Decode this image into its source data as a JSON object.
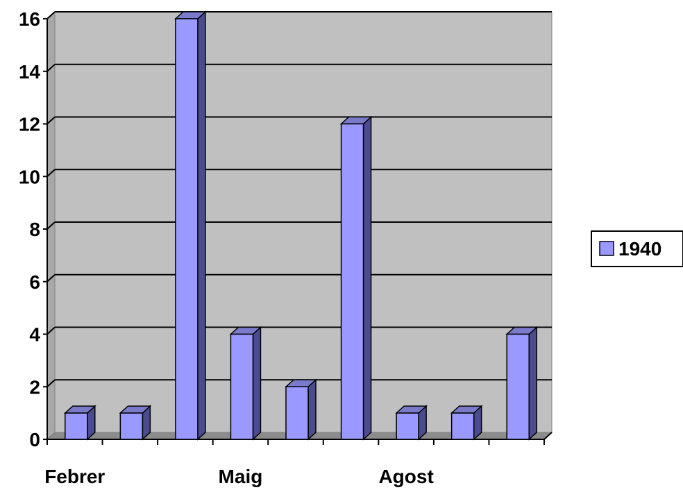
{
  "chart_data": {
    "type": "bar",
    "categories": [
      "Febrer",
      "",
      "",
      "Maig",
      "",
      "",
      "Agost",
      "",
      ""
    ],
    "visible_category_labels": [
      "Febrer",
      "Maig",
      "Agost"
    ],
    "series": [
      {
        "name": "1940",
        "values": [
          1,
          1,
          16,
          4,
          2,
          12,
          1,
          1,
          4
        ],
        "color": "#9999ff"
      }
    ],
    "ylim": [
      0,
      16
    ],
    "yticks": [
      0,
      2,
      4,
      6,
      8,
      10,
      12,
      14,
      16
    ],
    "grid": true,
    "legend_position": "right",
    "plot_background": "#c0c0c0",
    "bar_side_color": "#4b4b8f",
    "bar_top_color": "#7a7acb"
  }
}
